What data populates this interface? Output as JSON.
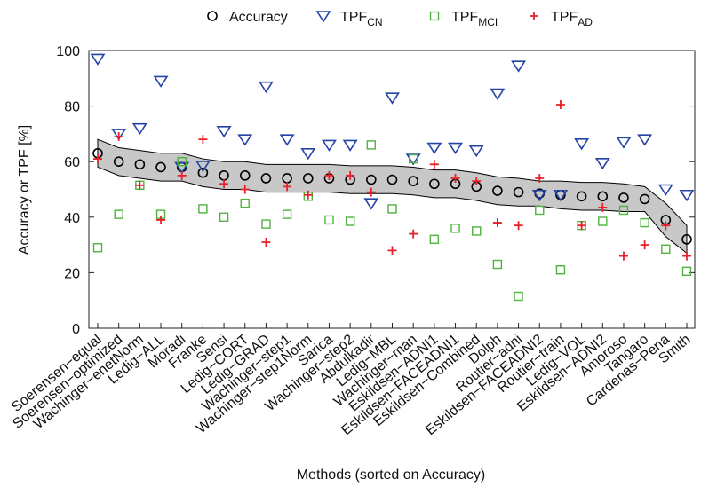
{
  "chart_data": {
    "type": "scatter",
    "x_label": "Methods (sorted on Accuracy)",
    "y_label": "Accuracy or TPF [%]",
    "categories": [
      "Soerensen−equal",
      "Soerensen−optimized",
      "Wachinger−enetNorm",
      "Ledig−ALL",
      "Moradi",
      "Franke",
      "Sensi",
      "Ledig−CORT",
      "Ledig−GRAD",
      "Wachinger−step1",
      "Wachinger−step1Norm",
      "Sarica",
      "Wachinger−step2",
      "Abdulkadir",
      "Ledig−MBL",
      "Wachinger−man",
      "Eskildsen−ADNI1",
      "Eskildsen−FACEADNI1",
      "Eskildsen−Combined",
      "Dolph",
      "Routier−adni",
      "Eskildsen−FACEADNI2",
      "Routier−train",
      "Ledig−VOL",
      "Eskildsen−ADNI2",
      "Amoroso",
      "Tangaro",
      "Cardenas−Pena",
      "Smith"
    ],
    "ylim": [
      0,
      100
    ],
    "yticks": [
      0,
      20,
      40,
      60,
      80,
      100
    ],
    "band": {
      "color": "#c8c8c8",
      "upper": [
        68,
        65,
        64,
        63,
        63,
        61,
        60,
        60,
        59,
        59,
        59,
        59,
        58.5,
        58.5,
        58.5,
        58,
        57,
        57,
        56,
        54.5,
        54,
        53,
        53,
        52.5,
        52.5,
        52,
        51,
        45,
        37
      ],
      "lower": [
        58,
        55,
        54,
        53,
        53,
        51,
        50,
        50,
        49,
        49,
        49,
        49,
        48.5,
        48.5,
        48.5,
        48,
        47,
        47,
        46,
        44.5,
        44,
        44,
        43,
        42.5,
        42.5,
        42,
        42,
        33,
        27
      ]
    },
    "series": [
      {
        "name": "Accuracy",
        "marker": "circle",
        "color": "#000000",
        "values": [
          63,
          60,
          59,
          58,
          58,
          56,
          55,
          55,
          54,
          54,
          54,
          54,
          53.5,
          53.5,
          53.5,
          53,
          52,
          52,
          51,
          49.5,
          49,
          48.5,
          48,
          47.5,
          47.5,
          47,
          46.5,
          39,
          32
        ]
      },
      {
        "name": "TPF",
        "subscript": "CN",
        "marker": "triangle",
        "color": "#2443a6",
        "values": [
          97,
          70,
          72,
          89,
          58,
          58.5,
          71,
          68,
          87,
          68,
          63,
          66,
          66,
          45,
          83,
          61,
          65,
          65,
          64,
          84.5,
          94.5,
          48,
          48,
          66.5,
          59.5,
          67,
          68,
          50,
          48
        ]
      },
      {
        "name": "TPF",
        "subscript": "MCI",
        "marker": "square",
        "color": "#4fb33f",
        "values": [
          29,
          41,
          51.5,
          41,
          60,
          43,
          40,
          45,
          37.5,
          41,
          47.5,
          39,
          38.5,
          66,
          43,
          61,
          32,
          36,
          35,
          23,
          11.5,
          42.5,
          21,
          37,
          38.5,
          42.5,
          38,
          28.5,
          20.5
        ]
      },
      {
        "name": "TPF",
        "subscript": "AD",
        "marker": "plus",
        "color": "#e8202a",
        "values": [
          61,
          69,
          51.5,
          39,
          55,
          68,
          52,
          50,
          31,
          51,
          48,
          55,
          55,
          49,
          28,
          34,
          59,
          54,
          53,
          38,
          37,
          54,
          80.5,
          37,
          43.5,
          26,
          30,
          37,
          26
        ]
      }
    ]
  }
}
